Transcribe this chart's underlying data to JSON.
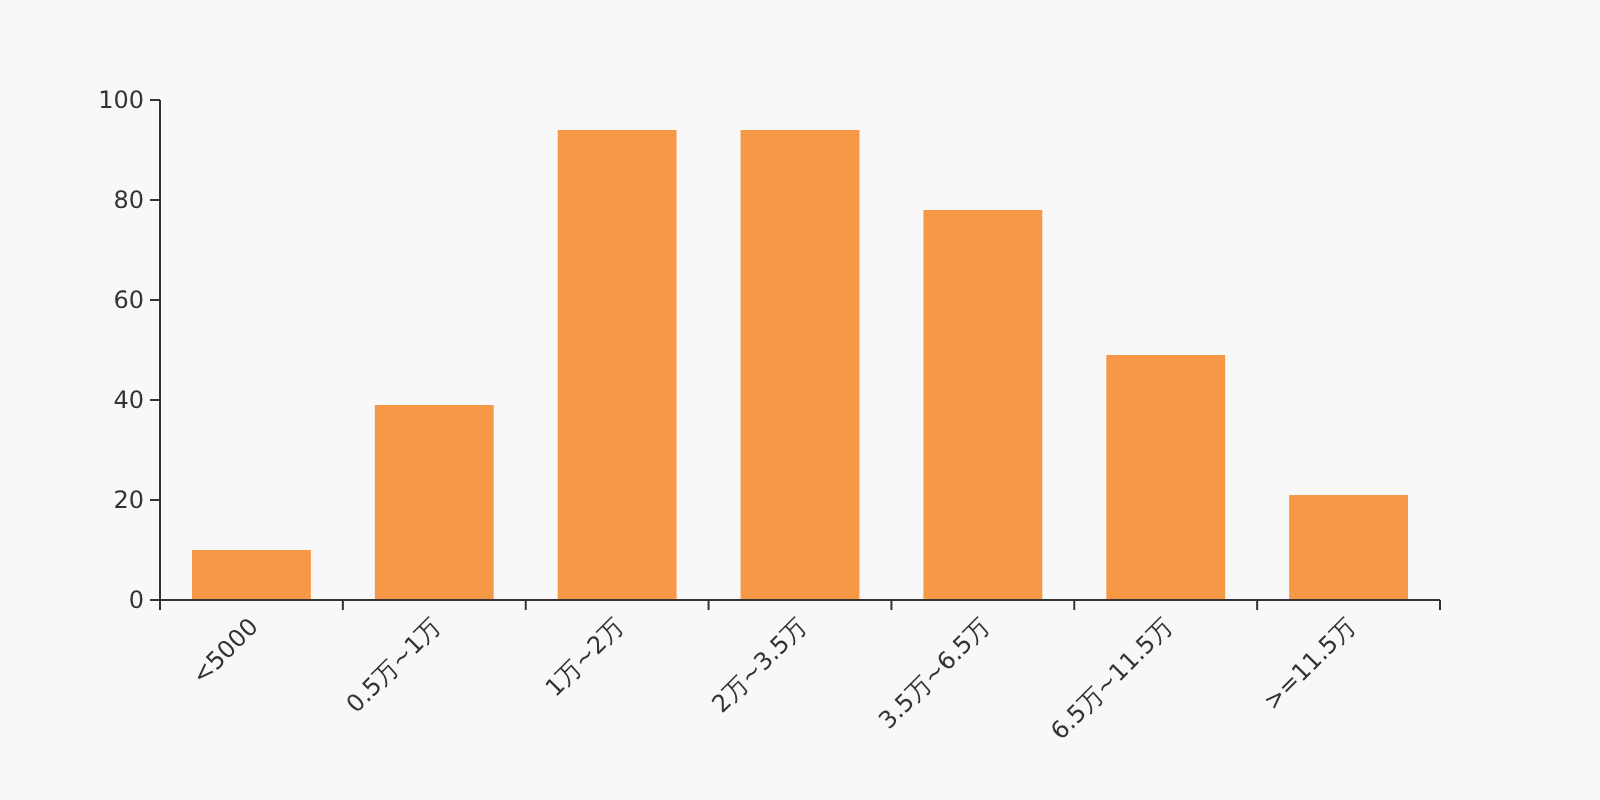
{
  "chart_data": {
    "type": "bar",
    "categories": [
      "<5000",
      "0.5万~1万",
      "1万~2万",
      "2万~3.5万",
      "3.5万~6.5万",
      "6.5万~11.5万",
      ">=11.5万"
    ],
    "values": [
      10,
      39,
      94,
      94,
      78,
      49,
      21
    ],
    "color": "#f79846",
    "ylim": [
      0,
      100
    ],
    "yticks": [
      0,
      20,
      40,
      60,
      80,
      100
    ],
    "grid": false
  }
}
